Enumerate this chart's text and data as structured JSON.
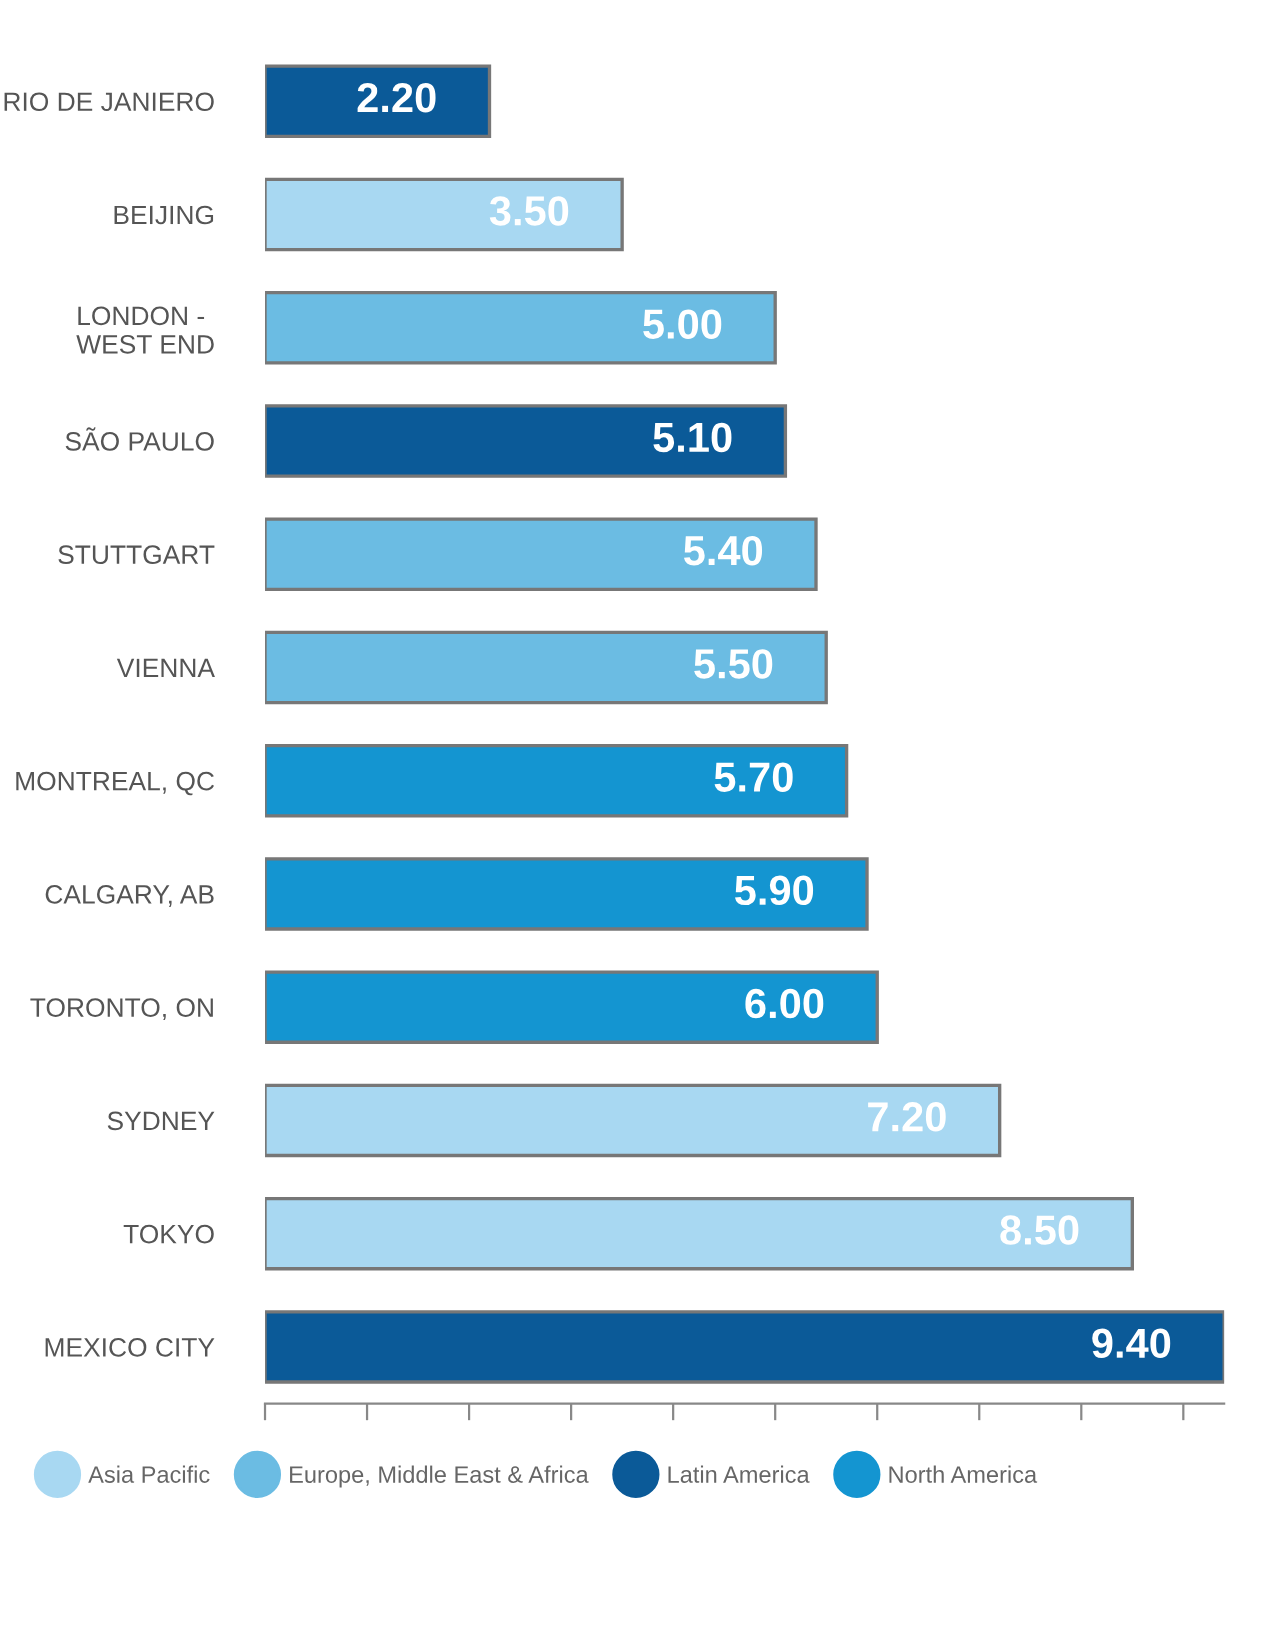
{
  "chart_data": {
    "type": "bar",
    "orientation": "horizontal",
    "categories": [
      "RIO DE JANIERO",
      "BEIJING",
      "LONDON -\nWEST END",
      "SÃO PAULO",
      "STUTTGART",
      "VIENNA",
      "MONTREAL, QC",
      "CALGARY, AB",
      "TORONTO, ON",
      "SYDNEY",
      "TOKYO",
      "MEXICO CITY"
    ],
    "series": [
      {
        "name": "Asia Pacific",
        "color": "#a8d8f2",
        "values": [
          null,
          3.5,
          null,
          null,
          null,
          null,
          null,
          null,
          null,
          7.2,
          8.5,
          null
        ],
        "value_labels": [
          null,
          "3.50",
          null,
          null,
          null,
          null,
          null,
          null,
          null,
          "7.20",
          "8.50",
          null
        ]
      },
      {
        "name": "Europe, Middle East & Africa",
        "color": "#6bbce3",
        "values": [
          null,
          null,
          5.0,
          null,
          5.4,
          5.5,
          null,
          null,
          null,
          null,
          null,
          null
        ],
        "value_labels": [
          null,
          null,
          "5.00",
          null,
          "5.40",
          "5.50",
          null,
          null,
          null,
          null,
          null,
          null
        ]
      },
      {
        "name": "Latin America",
        "color": "#0b5a98",
        "values": [
          2.2,
          null,
          null,
          5.1,
          null,
          null,
          null,
          null,
          null,
          null,
          null,
          9.4
        ],
        "value_labels": [
          "2.20",
          null,
          null,
          "5.10",
          null,
          null,
          null,
          null,
          null,
          null,
          null,
          "9.40"
        ]
      },
      {
        "name": "North America",
        "color": "#1495d1",
        "values": [
          null,
          null,
          null,
          null,
          null,
          null,
          5.7,
          5.9,
          6.0,
          null,
          null,
          null
        ],
        "value_labels": [
          null,
          null,
          null,
          null,
          null,
          null,
          "5.70",
          "5.90",
          "6.00",
          null,
          null,
          null
        ]
      }
    ],
    "tick_labels": "y",
    "grid": false,
    "legend": "bottom"
  }
}
